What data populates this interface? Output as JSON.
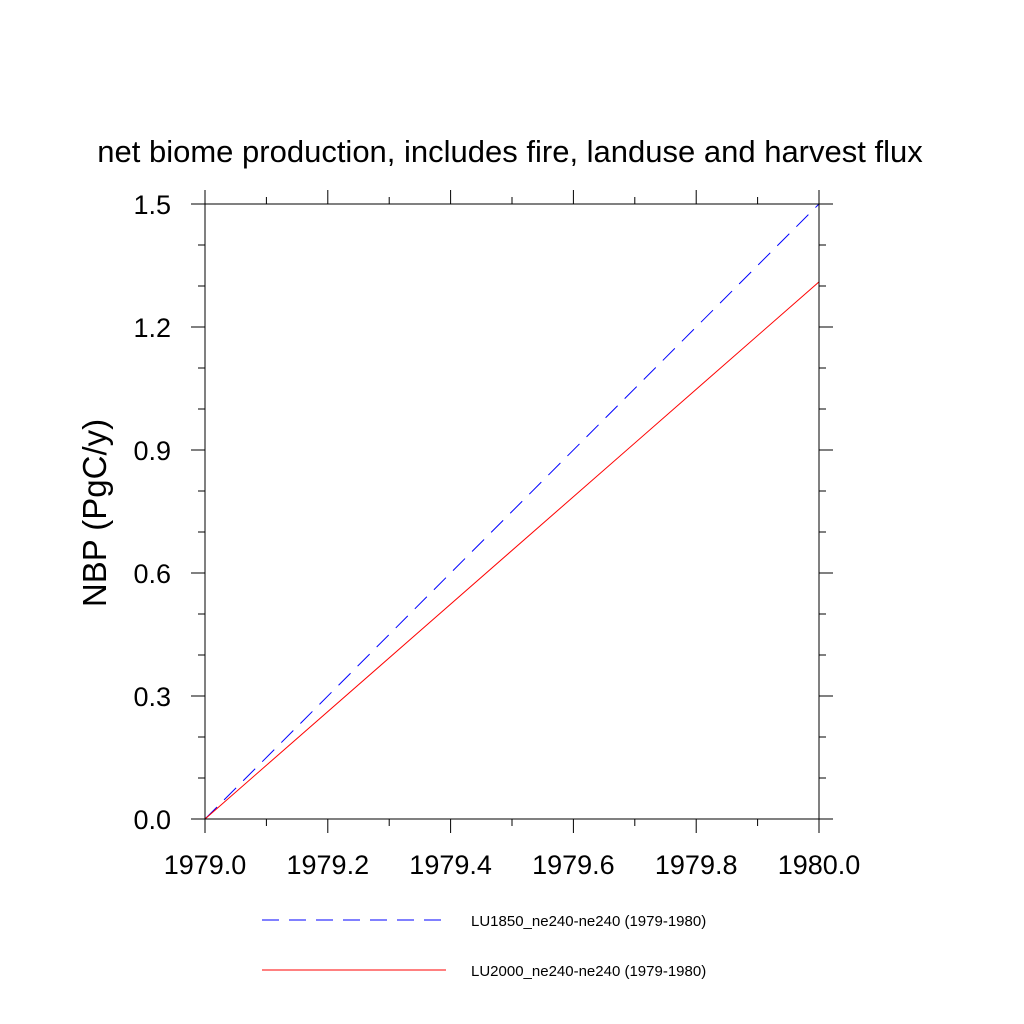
{
  "chart_data": {
    "type": "line",
    "title": "net biome production, includes fire, landuse and harvest flux",
    "ylabel": "NBP  (PgC/y)",
    "xlabel": "",
    "xlim": [
      1979.0,
      1980.0
    ],
    "ylim": [
      0.0,
      1.5
    ],
    "x_ticks": [
      1979.0,
      1979.2,
      1979.4,
      1979.6,
      1979.8,
      1980.0
    ],
    "x_tick_labels": [
      "1979.0",
      "1979.2",
      "1979.4",
      "1979.6",
      "1979.8",
      "1980.0"
    ],
    "y_ticks": [
      0.0,
      0.3,
      0.6,
      0.9,
      1.2,
      1.5
    ],
    "y_tick_labels": [
      "0.0",
      "0.3",
      "0.6",
      "0.9",
      "1.2",
      "1.5"
    ],
    "grid": false,
    "legend_position": "bottom",
    "series": [
      {
        "name": "LU1850_ne240-ne240 (1979-1980)",
        "color": "#0000ff",
        "dash": "dashed",
        "x": [
          1979.0,
          1980.0
        ],
        "y": [
          0.0,
          1.5
        ]
      },
      {
        "name": "LU2000_ne240-ne240 (1979-1980)",
        "color": "#ff0000",
        "dash": "solid",
        "x": [
          1979.0,
          1980.0
        ],
        "y": [
          0.0,
          1.31
        ]
      }
    ]
  }
}
